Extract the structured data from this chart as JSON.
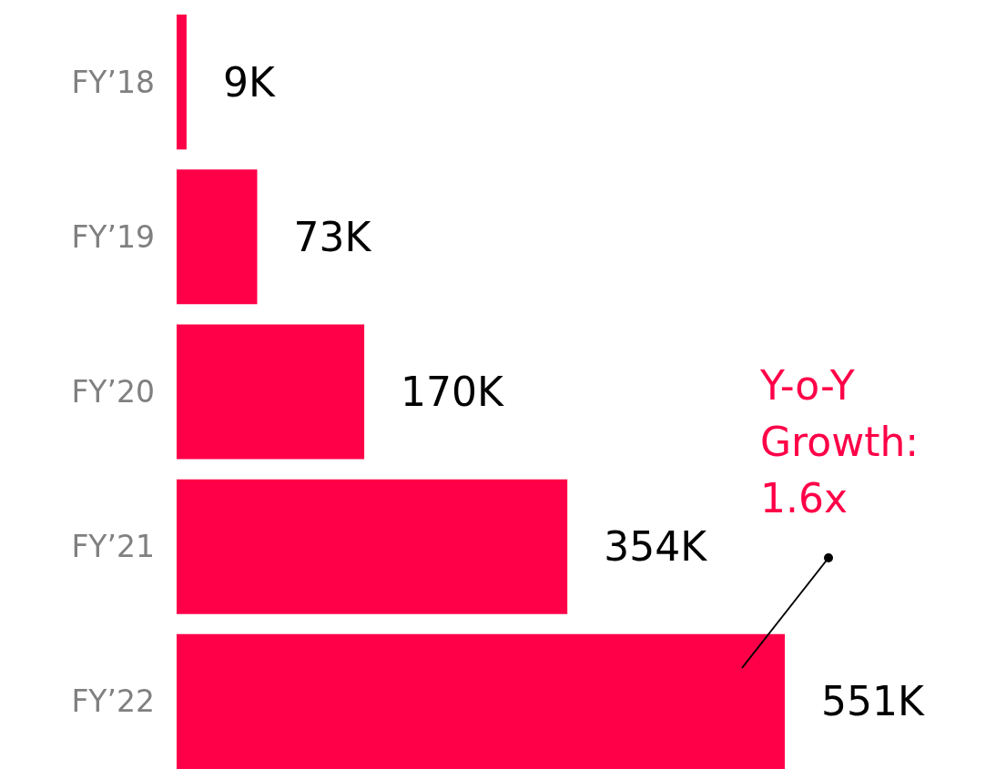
{
  "chart_data": {
    "type": "bar",
    "orientation": "horizontal",
    "categories": [
      "FY’18",
      "FY’19",
      "FY’20",
      "FY’21",
      "FY’22"
    ],
    "values": [
      9,
      73,
      170,
      354,
      551
    ],
    "color": "#ff0048",
    "value_labels": [
      "9K",
      "73K",
      "170K",
      "354K",
      "551K"
    ],
    "annotations": [
      "Y-o-Y Growth: 1.6x"
    ]
  }
}
